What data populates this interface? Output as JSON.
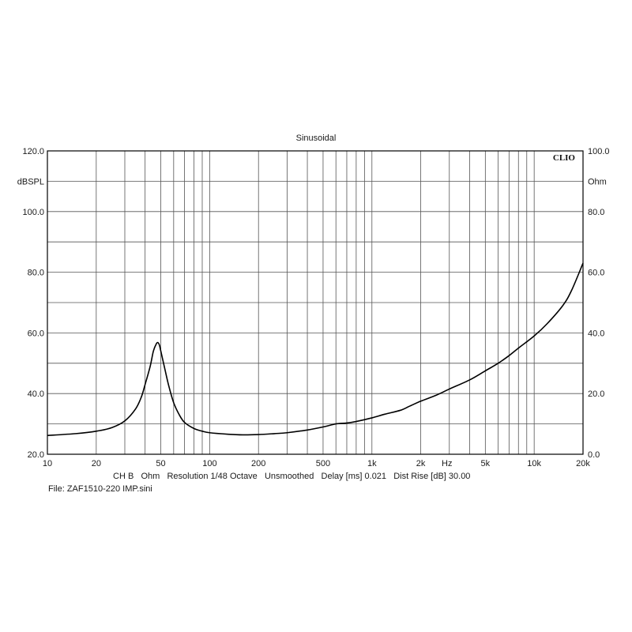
{
  "chart_data": {
    "type": "line",
    "title": "Sinusoidal",
    "brand": "CLIO",
    "x_scale": "log",
    "xlim": [
      10,
      20000
    ],
    "x_ticks": [
      {
        "v": 10,
        "label": "10"
      },
      {
        "v": 20,
        "label": "20"
      },
      {
        "v": 50,
        "label": "50"
      },
      {
        "v": 100,
        "label": "100"
      },
      {
        "v": 200,
        "label": "200"
      },
      {
        "v": 500,
        "label": "500"
      },
      {
        "v": 1000,
        "label": "1k"
      },
      {
        "v": 2000,
        "label": "2k"
      },
      {
        "v": 5000,
        "label": "5k"
      },
      {
        "v": 10000,
        "label": "10k"
      },
      {
        "v": 20000,
        "label": "20k"
      }
    ],
    "x_unit_label": "Hz",
    "y_left": {
      "label": "dBSPL",
      "ylim": [
        20,
        120
      ],
      "ticks": [
        "20.0",
        "40.0",
        "60.0",
        "80.0",
        "100.0",
        "120.0"
      ]
    },
    "y_right": {
      "label": "Ohm",
      "ylim": [
        0,
        100
      ],
      "ticks": [
        "0.0",
        "20.0",
        "40.0",
        "60.0",
        "80.0",
        "100.0"
      ]
    },
    "grid": true,
    "series": [
      {
        "axis": "right",
        "color": "#000000",
        "points": [
          [
            10,
            6.2
          ],
          [
            15,
            6.8
          ],
          [
            20,
            7.6
          ],
          [
            25,
            8.8
          ],
          [
            30,
            11.0
          ],
          [
            35,
            15.0
          ],
          [
            38,
            19.0
          ],
          [
            40,
            23.0
          ],
          [
            43,
            29.0
          ],
          [
            45,
            34.0
          ],
          [
            47,
            36.5
          ],
          [
            48,
            36.8
          ],
          [
            49,
            36.0
          ],
          [
            50,
            34.0
          ],
          [
            53,
            28.0
          ],
          [
            56,
            22.5
          ],
          [
            60,
            17.0
          ],
          [
            65,
            13.0
          ],
          [
            70,
            10.5
          ],
          [
            80,
            8.5
          ],
          [
            90,
            7.6
          ],
          [
            100,
            7.1
          ],
          [
            130,
            6.6
          ],
          [
            160,
            6.4
          ],
          [
            200,
            6.5
          ],
          [
            250,
            6.8
          ],
          [
            300,
            7.1
          ],
          [
            400,
            8.0
          ],
          [
            500,
            9.0
          ],
          [
            600,
            10.0
          ],
          [
            700,
            10.3
          ],
          [
            800,
            10.8
          ],
          [
            1000,
            12.0
          ],
          [
            1200,
            13.2
          ],
          [
            1500,
            14.5
          ],
          [
            1700,
            15.8
          ],
          [
            2000,
            17.5
          ],
          [
            2500,
            19.5
          ],
          [
            3000,
            21.5
          ],
          [
            4000,
            24.5
          ],
          [
            5000,
            27.5
          ],
          [
            6000,
            30.0
          ],
          [
            7000,
            32.5
          ],
          [
            8000,
            35.0
          ],
          [
            10000,
            39.0
          ],
          [
            12000,
            43.0
          ],
          [
            15000,
            49.0
          ],
          [
            17000,
            54.0
          ],
          [
            20000,
            63.0
          ]
        ]
      }
    ]
  },
  "footer": {
    "line1": "CH B   Ohm   Resolution 1/48 Octave   Unsmoothed   Delay [ms] 0.021   Dist Rise [dB] 30.00",
    "line2": "File: ZAF1510-220 IMP.sini"
  }
}
